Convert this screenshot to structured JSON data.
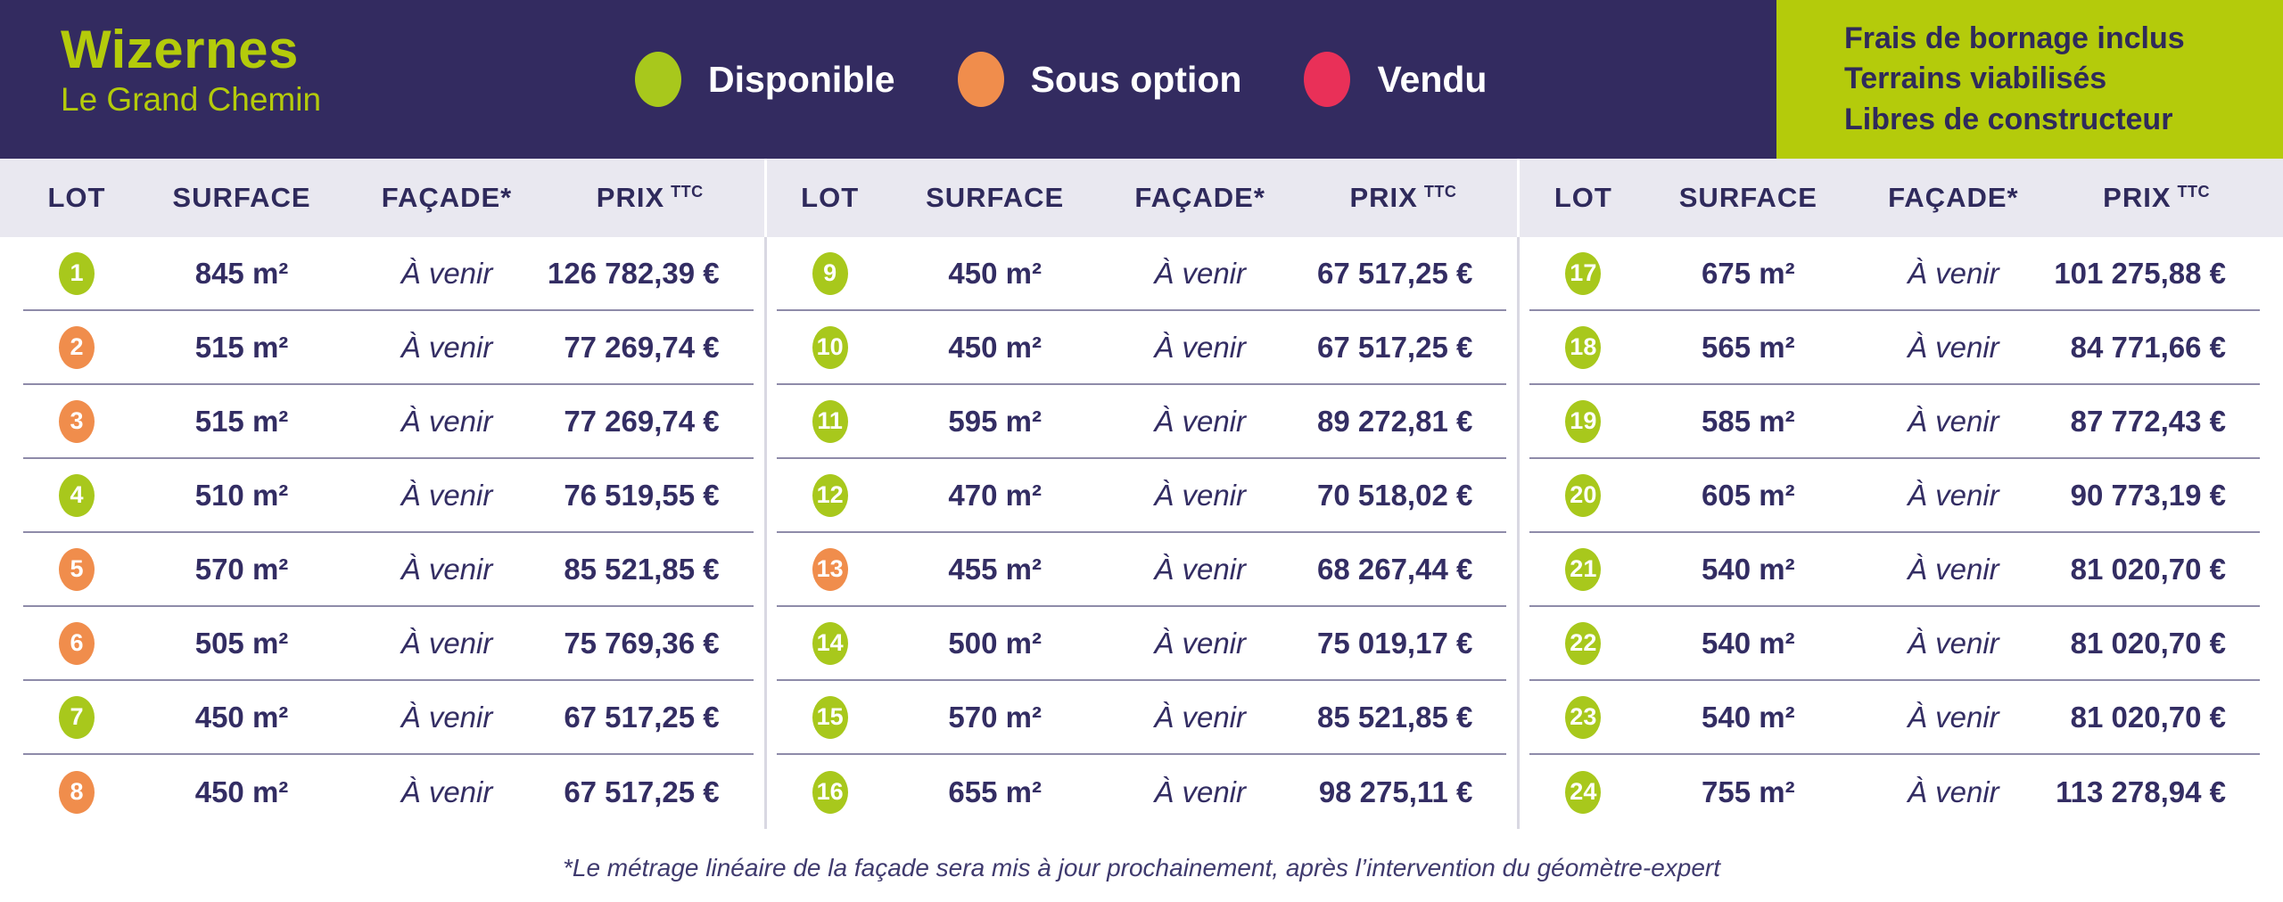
{
  "header": {
    "title": "Wizernes",
    "subtitle": "Le Grand Chemin",
    "legend": [
      {
        "status": "disponible",
        "label": "Disponible",
        "color": "#a8c81c"
      },
      {
        "status": "sous-option",
        "label": "Sous option",
        "color": "#f08d4c"
      },
      {
        "status": "vendu",
        "label": "Vendu",
        "color": "#e93058"
      }
    ],
    "info_box": {
      "lines": [
        "Frais de bornage inclus",
        "Terrains viabilisés",
        "Libres de constructeur"
      ]
    }
  },
  "table": {
    "columns": [
      "LOT",
      "SURFACE",
      "FAÇADE*",
      "PRIX"
    ],
    "price_superscript": "TTC",
    "groups": [
      {
        "rows": [
          {
            "lot": "1",
            "surface": "845 m²",
            "facade": "À venir",
            "price": "126 782,39 €",
            "status": "disponible"
          },
          {
            "lot": "2",
            "surface": "515 m²",
            "facade": "À venir",
            "price": "77 269,74 €",
            "status": "sous-option"
          },
          {
            "lot": "3",
            "surface": "515 m²",
            "facade": "À venir",
            "price": "77 269,74 €",
            "status": "sous-option"
          },
          {
            "lot": "4",
            "surface": "510 m²",
            "facade": "À venir",
            "price": "76 519,55 €",
            "status": "disponible"
          },
          {
            "lot": "5",
            "surface": "570 m²",
            "facade": "À venir",
            "price": "85 521,85 €",
            "status": "sous-option"
          },
          {
            "lot": "6",
            "surface": "505 m²",
            "facade": "À venir",
            "price": "75 769,36 €",
            "status": "sous-option"
          },
          {
            "lot": "7",
            "surface": "450 m²",
            "facade": "À venir",
            "price": "67 517,25 €",
            "status": "disponible"
          },
          {
            "lot": "8",
            "surface": "450 m²",
            "facade": "À venir",
            "price": "67 517,25 €",
            "status": "sous-option"
          }
        ]
      },
      {
        "rows": [
          {
            "lot": "9",
            "surface": "450 m²",
            "facade": "À venir",
            "price": "67 517,25 €",
            "status": "disponible"
          },
          {
            "lot": "10",
            "surface": "450 m²",
            "facade": "À venir",
            "price": "67 517,25 €",
            "status": "disponible"
          },
          {
            "lot": "11",
            "surface": "595 m²",
            "facade": "À venir",
            "price": "89 272,81 €",
            "status": "disponible"
          },
          {
            "lot": "12",
            "surface": "470 m²",
            "facade": "À venir",
            "price": "70 518,02 €",
            "status": "disponible"
          },
          {
            "lot": "13",
            "surface": "455 m²",
            "facade": "À venir",
            "price": "68 267,44 €",
            "status": "sous-option"
          },
          {
            "lot": "14",
            "surface": "500 m²",
            "facade": "À venir",
            "price": "75 019,17 €",
            "status": "disponible"
          },
          {
            "lot": "15",
            "surface": "570 m²",
            "facade": "À venir",
            "price": "85 521,85 €",
            "status": "disponible"
          },
          {
            "lot": "16",
            "surface": "655 m²",
            "facade": "À venir",
            "price": "98 275,11 €",
            "status": "disponible"
          }
        ]
      },
      {
        "rows": [
          {
            "lot": "17",
            "surface": "675 m²",
            "facade": "À venir",
            "price": "101 275,88 €",
            "status": "disponible"
          },
          {
            "lot": "18",
            "surface": "565 m²",
            "facade": "À venir",
            "price": "84 771,66 €",
            "status": "disponible"
          },
          {
            "lot": "19",
            "surface": "585 m²",
            "facade": "À venir",
            "price": "87 772,43 €",
            "status": "disponible"
          },
          {
            "lot": "20",
            "surface": "605 m²",
            "facade": "À venir",
            "price": "90 773,19 €",
            "status": "disponible"
          },
          {
            "lot": "21",
            "surface": "540 m²",
            "facade": "À venir",
            "price": "81 020,70 €",
            "status": "disponible"
          },
          {
            "lot": "22",
            "surface": "540 m²",
            "facade": "À venir",
            "price": "81 020,70 €",
            "status": "disponible"
          },
          {
            "lot": "23",
            "surface": "540 m²",
            "facade": "À venir",
            "price": "81 020,70 €",
            "status": "disponible"
          },
          {
            "lot": "24",
            "surface": "755 m²",
            "facade": "À venir",
            "price": "113 278,94 €",
            "status": "disponible"
          }
        ]
      }
    ]
  },
  "footnote": "*Le métrage linéaire de la façade sera mis à jour prochainement, après l’intervention du géomètre-expert",
  "colors": {
    "banner_purple": "#332b60",
    "text_purple": "#332d63",
    "lime": "#b4cb0b",
    "status_disponible": "#a8c81c",
    "status_sous_option": "#f08d4c",
    "status_vendu": "#e93058",
    "header_band": "#e9e8f0",
    "row_separator": "#8e8ba9",
    "group_divider": "#d9d8e2"
  }
}
